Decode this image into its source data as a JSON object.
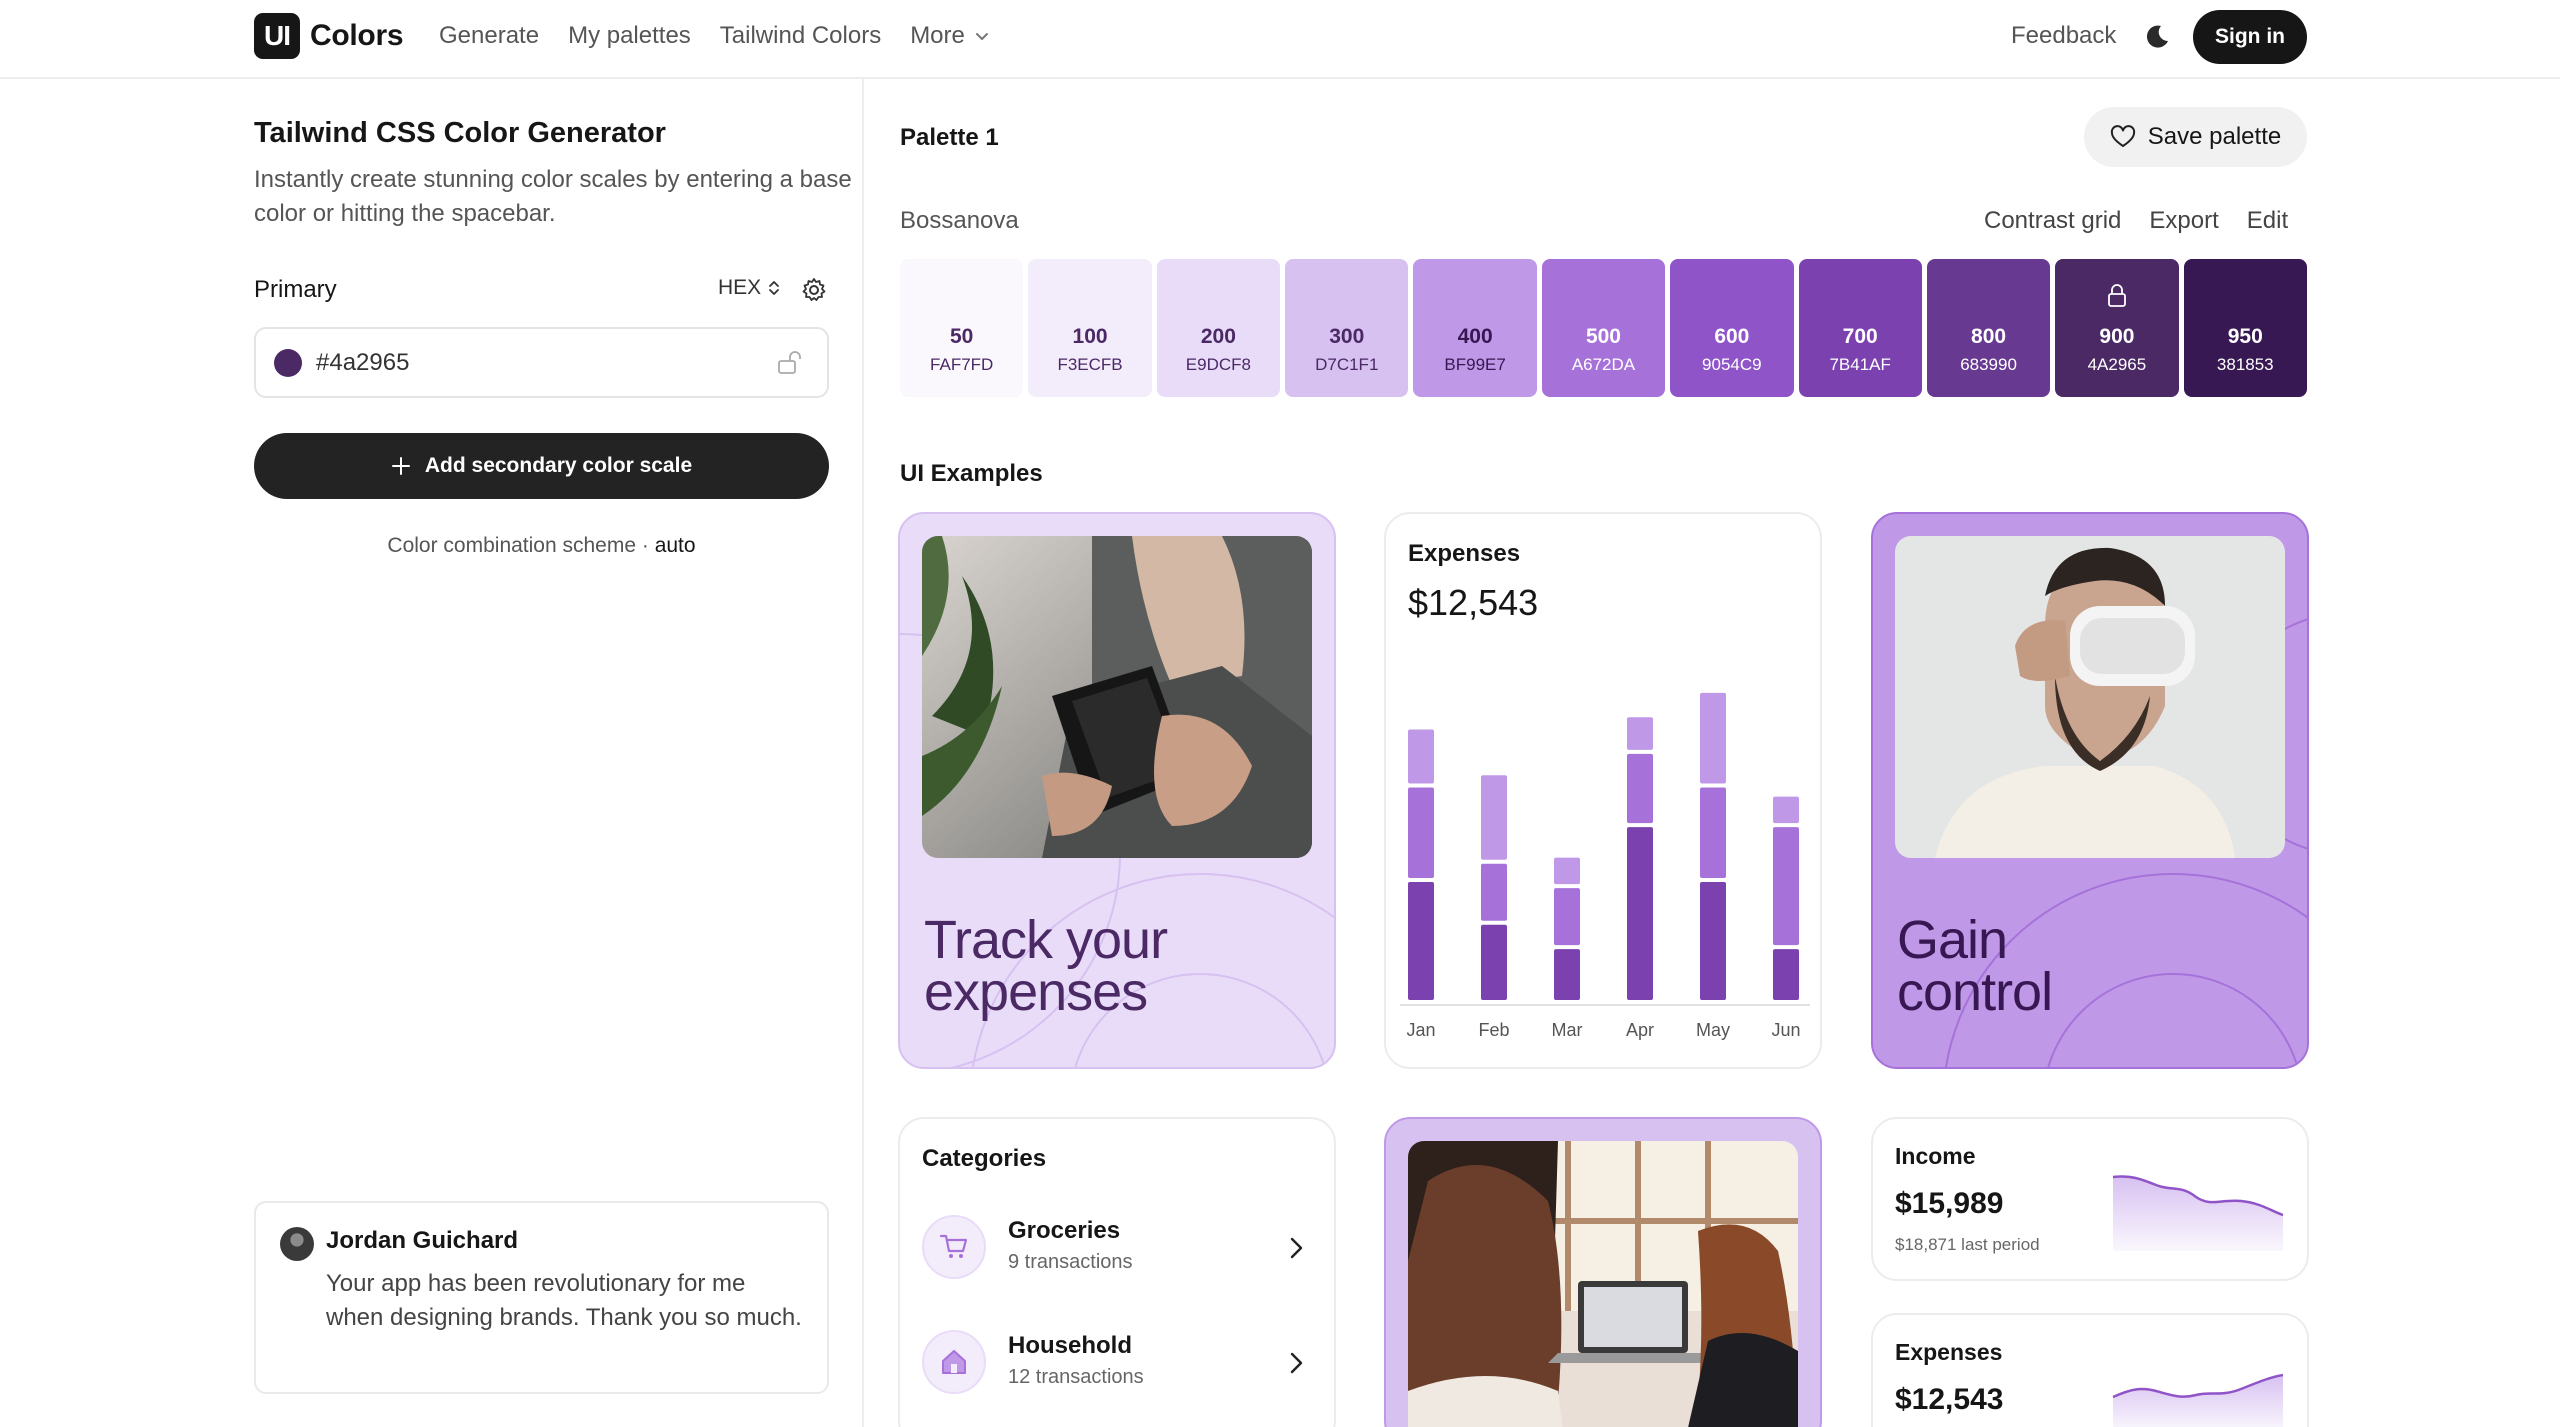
{
  "header": {
    "logo_mark": "UI",
    "logo_text": "Colors",
    "nav": [
      "Generate",
      "My palettes",
      "Tailwind Colors"
    ],
    "more_label": "More",
    "feedback_label": "Feedback",
    "signin_label": "Sign in"
  },
  "generator": {
    "title": "Tailwind CSS Color Generator",
    "description": "Instantly create stunning color scales by entering a base color or hitting the spacebar.",
    "primary_label": "Primary",
    "format_label": "HEX",
    "color_value": "#4a2965",
    "add_secondary_label": "Add secondary color scale",
    "scheme_label": "Color combination scheme ·",
    "scheme_value": "auto"
  },
  "testimonial": {
    "name": "Jordan Guichard",
    "text": "Your app has been revolutionary for me when designing brands. Thank you so much."
  },
  "palette": {
    "name": "Palette 1",
    "save_label": "Save palette",
    "scale_name": "Bossanova",
    "actions": [
      "Contrast grid",
      "Export",
      "Edit"
    ],
    "swatches": [
      {
        "shade": "50",
        "hex": "FAF7FD",
        "color": "#faf7fd",
        "text": "#4a2965"
      },
      {
        "shade": "100",
        "hex": "F3ECFB",
        "color": "#f3ecfb",
        "text": "#4a2965"
      },
      {
        "shade": "200",
        "hex": "E9DCF8",
        "color": "#e9dcf8",
        "text": "#4a2965"
      },
      {
        "shade": "300",
        "hex": "D7C1F1",
        "color": "#d7c1f1",
        "text": "#4a2965"
      },
      {
        "shade": "400",
        "hex": "BF99E7",
        "color": "#bf99e7",
        "text": "#381853"
      },
      {
        "shade": "500",
        "hex": "A672DA",
        "color": "#a672da",
        "text": "#ffffff"
      },
      {
        "shade": "600",
        "hex": "9054C9",
        "color": "#9054c9",
        "text": "#ffffff"
      },
      {
        "shade": "700",
        "hex": "7B41AF",
        "color": "#7b41af",
        "text": "#ffffff"
      },
      {
        "shade": "800",
        "hex": "683990",
        "color": "#683990",
        "text": "#ffffff"
      },
      {
        "shade": "900",
        "hex": "4A2965",
        "color": "#4a2965",
        "text": "#ffffff",
        "locked": true
      },
      {
        "shade": "950",
        "hex": "381853",
        "color": "#381853",
        "text": "#ffffff"
      }
    ]
  },
  "examples": {
    "heading": "UI Examples",
    "track_card": {
      "text_line1": "Track your",
      "text_line2": "expenses"
    },
    "gain_card": {
      "text_line1": "Gain",
      "text_line2": "control"
    },
    "expenses_card": {
      "title": "Expenses",
      "amount": "$12,543"
    },
    "categories_card": {
      "title": "Categories",
      "items": [
        {
          "name": "Groceries",
          "sub": "9 transactions",
          "icon": "cart-icon"
        },
        {
          "name": "Household",
          "sub": "12 transactions",
          "icon": "home-icon"
        }
      ]
    },
    "income_card": {
      "title": "Income",
      "amount": "$15,989",
      "sub": "$18,871 last period"
    },
    "expenses_small_card": {
      "title": "Expenses",
      "amount": "$12,543"
    }
  },
  "chart_data": {
    "type": "bar",
    "categories": [
      "Jan",
      "Feb",
      "Mar",
      "Apr",
      "May",
      "Jun"
    ],
    "series": [
      {
        "values": [
          40,
          26,
          18,
          58,
          40,
          18
        ]
      },
      {
        "values": [
          31,
          20,
          20,
          24,
          31,
          40
        ]
      },
      {
        "values": [
          19,
          29,
          10,
          12,
          31,
          10
        ]
      }
    ],
    "colors": [
      "#7b41af",
      "#a672da",
      "#bf99e7"
    ]
  }
}
